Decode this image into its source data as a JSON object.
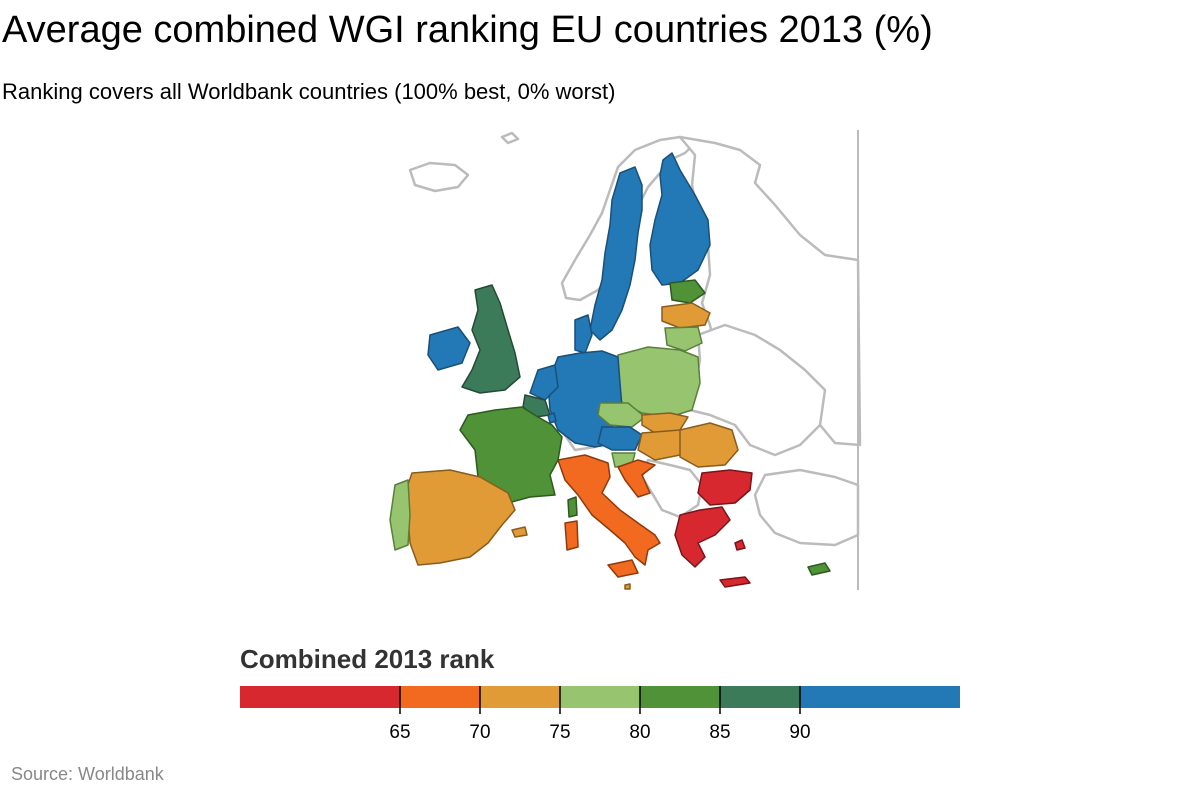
{
  "header": {
    "title": "Average combined WGI ranking EU countries 2013 (%)",
    "subtitle": "Ranking covers all Worldbank countries (100% best, 0% worst)"
  },
  "legend": {
    "title": "Combined 2013 rank",
    "tick_labels": [
      "65",
      "70",
      "75",
      "80",
      "85",
      "90"
    ],
    "bins": [
      {
        "max": 65,
        "color": "#d7282f"
      },
      {
        "min": 65,
        "max": 70,
        "color": "#f26a1f"
      },
      {
        "min": 70,
        "max": 75,
        "color": "#e09a36"
      },
      {
        "min": 75,
        "max": 80,
        "color": "#97c46e"
      },
      {
        "min": 80,
        "max": 85,
        "color": "#4f9237"
      },
      {
        "min": 85,
        "max": 90,
        "color": "#3c7b5a"
      },
      {
        "min": 90,
        "color": "#2279b5"
      }
    ]
  },
  "map": {
    "non_eu_color": "#ffffff",
    "border_color": "#bbbbbb"
  },
  "source": "Source: Worldbank"
}
